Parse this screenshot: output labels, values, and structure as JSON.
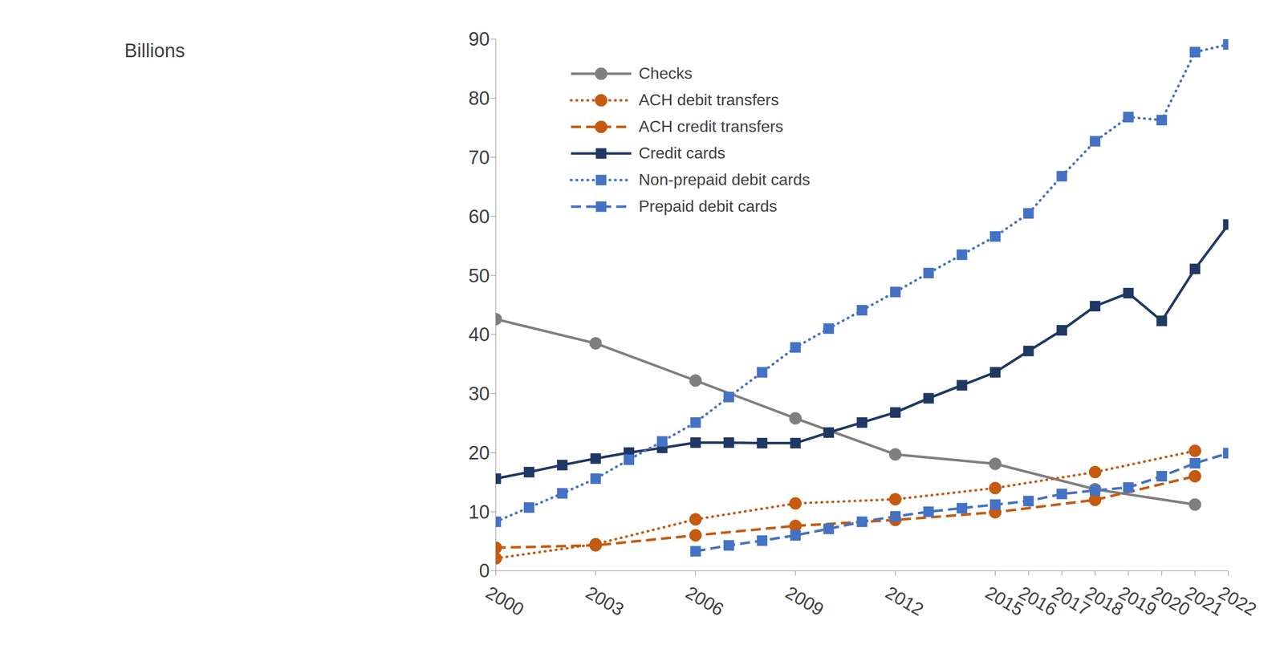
{
  "chart_data": {
    "type": "line",
    "y_label": "Billions",
    "x": [
      2000,
      2001,
      2002,
      2003,
      2004,
      2005,
      2006,
      2007,
      2008,
      2009,
      2010,
      2011,
      2012,
      2013,
      2014,
      2015,
      2016,
      2017,
      2018,
      2019,
      2020,
      2021,
      2022
    ],
    "xlim": [
      2000,
      2022
    ],
    "xticks": [
      2000,
      2003,
      2006,
      2009,
      2012,
      2015,
      2016,
      2017,
      2018,
      2019,
      2020,
      2021,
      2022
    ],
    "ylim": [
      0,
      90
    ],
    "yticks": [
      0,
      10,
      20,
      30,
      40,
      50,
      60,
      70,
      80,
      90
    ],
    "grid": false,
    "legend": "top",
    "series": [
      {
        "name": "Checks",
        "color": "#7f7f7f",
        "marker": "circle",
        "line_style": "solid",
        "values": [
          42.6,
          null,
          null,
          38.5,
          null,
          null,
          32.2,
          null,
          null,
          25.8,
          null,
          null,
          19.7,
          null,
          null,
          18.1,
          null,
          null,
          13.8,
          null,
          null,
          11.2,
          null
        ]
      },
      {
        "name": "ACH debit transfers",
        "color": "#c55a11",
        "marker": "circle",
        "line_style": "dotted",
        "values": [
          2.1,
          null,
          null,
          4.5,
          null,
          null,
          8.7,
          null,
          null,
          11.4,
          null,
          null,
          12.1,
          null,
          null,
          14.0,
          null,
          null,
          16.7,
          null,
          null,
          20.3,
          null
        ]
      },
      {
        "name": "ACH credit transfers",
        "color": "#c55a11",
        "marker": "circle",
        "line_style": "dashed",
        "values": [
          3.9,
          null,
          null,
          4.3,
          null,
          null,
          6.0,
          null,
          null,
          7.6,
          null,
          null,
          8.6,
          null,
          null,
          9.9,
          null,
          null,
          12.0,
          null,
          null,
          16.0,
          null
        ]
      },
      {
        "name": "Credit cards",
        "color": "#203864",
        "marker": "square",
        "line_style": "solid",
        "values": [
          15.6,
          16.7,
          17.9,
          19.0,
          20.0,
          20.8,
          21.7,
          21.7,
          21.6,
          21.6,
          23.4,
          25.1,
          26.8,
          29.2,
          31.4,
          33.6,
          37.2,
          40.7,
          44.8,
          47.0,
          42.3,
          51.1,
          58.6
        ]
      },
      {
        "name": "Non-prepaid debit cards",
        "color": "#4472c4",
        "marker": "square",
        "line_style": "dotted",
        "values": [
          8.3,
          10.7,
          13.1,
          15.6,
          18.8,
          21.9,
          25.1,
          29.4,
          33.6,
          37.8,
          41.0,
          44.1,
          47.2,
          50.4,
          53.5,
          56.6,
          60.5,
          66.8,
          72.7,
          76.8,
          76.3,
          87.8,
          89.1
        ]
      },
      {
        "name": "Prepaid debit cards",
        "color": "#4472c4",
        "marker": "square",
        "line_style": "dashed",
        "values": [
          null,
          null,
          null,
          null,
          null,
          null,
          3.3,
          4.3,
          5.1,
          6.0,
          7.1,
          8.3,
          9.2,
          10.0,
          10.6,
          11.2,
          11.8,
          13.0,
          13.6,
          14.1,
          16.0,
          18.2,
          19.9
        ]
      }
    ]
  }
}
